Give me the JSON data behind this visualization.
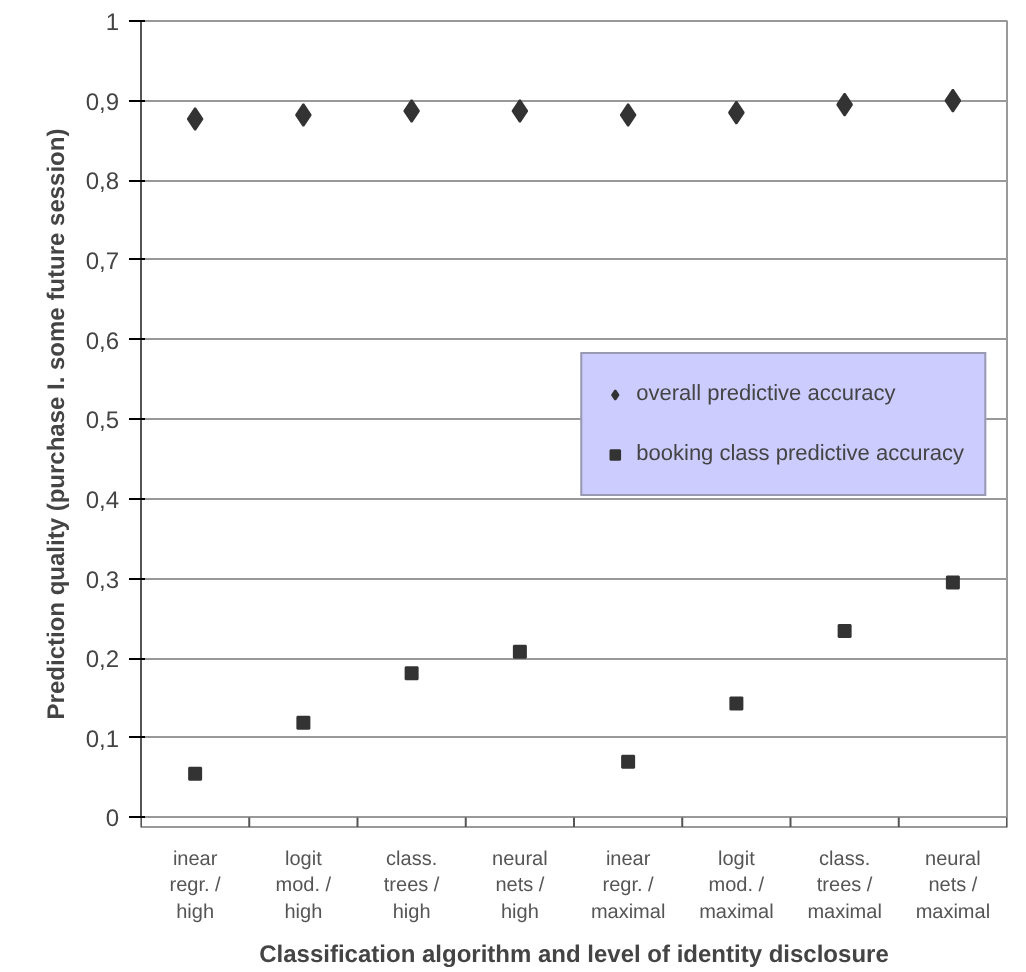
{
  "chart_data": {
    "type": "scatter",
    "xlabel": "Classification algorithm and level of identity disclosure",
    "ylabel": "Prediction quality (purchase I. some future session)",
    "categories": [
      "inear regr. / high",
      "logit mod. / high",
      "class. trees / high",
      "neural nets / high",
      "inear regr. / maximal",
      "logit mod. / maximal",
      "class. trees / maximal",
      "neural nets / maximal"
    ],
    "series": [
      {
        "name": "overall predictive accuracy",
        "color": "#333333",
        "marker": "diamond",
        "values": [
          0.877,
          0.882,
          0.887,
          0.887,
          0.882,
          0.885,
          0.895,
          0.9
        ]
      },
      {
        "name": "booking class predictive accuracy",
        "color": "#333333",
        "marker": "square",
        "values": [
          0.055,
          0.119,
          0.181,
          0.208,
          0.07,
          0.143,
          0.234,
          0.295
        ]
      }
    ],
    "ylim": [
      0,
      1
    ],
    "yticks": [
      0,
      {
        "value": 0.1,
        "label": "0,1"
      },
      {
        "value": 0.2,
        "label": "0,2"
      },
      {
        "value": 0.3,
        "label": "0,3"
      },
      {
        "value": 0.4,
        "label": "0,4"
      },
      {
        "value": 0.5,
        "label": "0,5"
      },
      {
        "value": 0.6,
        "label": "0,6"
      },
      {
        "value": 0.7,
        "label": "0,7"
      },
      {
        "value": 0.8,
        "label": "0,8"
      },
      {
        "value": 0.9,
        "label": "0,9"
      },
      1
    ],
    "grid": "y",
    "legend": "right"
  }
}
